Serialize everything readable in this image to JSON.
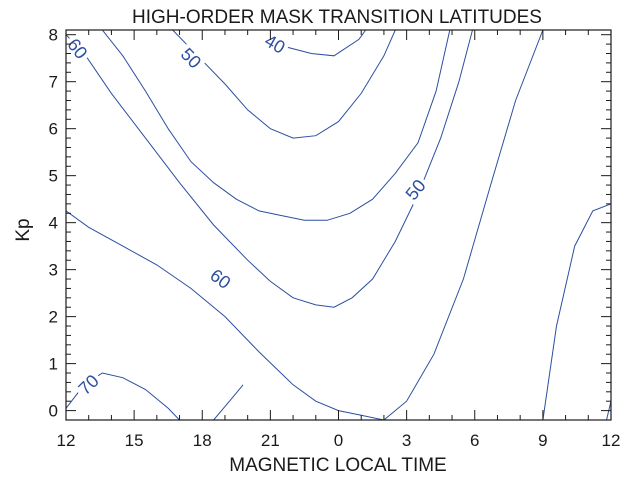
{
  "chart_data": {
    "type": "contour",
    "title": "HIGH-ORDER MASK TRANSITION LATITUDES",
    "xlabel": "MAGNETIC LOCAL TIME",
    "ylabel": "Kp",
    "x_ticks": [
      "12",
      "15",
      "18",
      "21",
      "0",
      "3",
      "6",
      "9",
      "12"
    ],
    "x_range_hours_from_noon": [
      0,
      24
    ],
    "y_ticks": [
      "0",
      "1",
      "2",
      "3",
      "4",
      "5",
      "6",
      "7",
      "8"
    ],
    "ylim": [
      -0.2,
      8.1
    ],
    "line_color": "#2c4fa0",
    "contours": [
      {
        "label": "40",
        "label_at": {
          "x": 9.2,
          "y": 7.8
        },
        "points": [
          [
            9.0,
            8.1
          ],
          [
            9.6,
            7.75
          ],
          [
            10.8,
            7.6
          ],
          [
            11.8,
            7.55
          ],
          [
            12.9,
            7.9
          ],
          [
            13.2,
            8.1
          ]
        ]
      },
      {
        "label": "50",
        "label_at": {
          "x": 5.5,
          "y": 7.5
        },
        "points": [
          [
            4.7,
            8.1
          ],
          [
            5.8,
            7.55
          ],
          [
            7.0,
            6.95
          ],
          [
            8.0,
            6.4
          ],
          [
            9.0,
            6.0
          ],
          [
            10.0,
            5.8
          ],
          [
            11.0,
            5.85
          ],
          [
            12.0,
            6.15
          ],
          [
            13.0,
            6.75
          ],
          [
            14.0,
            7.55
          ],
          [
            14.5,
            8.1
          ]
        ]
      },
      {
        "label": "50",
        "label_at": {
          "x": 15.4,
          "y": 4.7
        },
        "points": [
          [
            1.6,
            8.1
          ],
          [
            2.5,
            7.55
          ],
          [
            3.5,
            6.8
          ],
          [
            4.5,
            6.0
          ],
          [
            5.5,
            5.3
          ],
          [
            6.5,
            4.85
          ],
          [
            7.5,
            4.5
          ],
          [
            8.5,
            4.25
          ],
          [
            9.5,
            4.15
          ],
          [
            10.5,
            4.05
          ],
          [
            11.5,
            4.05
          ],
          [
            12.5,
            4.2
          ],
          [
            13.5,
            4.5
          ],
          [
            14.5,
            5.05
          ],
          [
            15.5,
            5.7
          ],
          [
            16.3,
            6.8
          ],
          [
            16.9,
            8.1
          ]
        ]
      },
      {
        "label": "60",
        "label_at": {
          "x": 0.5,
          "y": 7.7
        },
        "points": [
          [
            0.0,
            8.0
          ],
          [
            0.8,
            7.6
          ],
          [
            2.0,
            6.75
          ],
          [
            3.5,
            5.8
          ],
          [
            5.0,
            4.85
          ],
          [
            6.5,
            3.95
          ],
          [
            8.0,
            3.2
          ],
          [
            9.0,
            2.75
          ],
          [
            10.0,
            2.4
          ],
          [
            11.0,
            2.25
          ],
          [
            11.8,
            2.2
          ],
          [
            12.6,
            2.4
          ],
          [
            13.5,
            2.8
          ],
          [
            14.5,
            3.6
          ],
          [
            15.5,
            4.6
          ],
          [
            16.5,
            5.8
          ],
          [
            17.3,
            7.0
          ],
          [
            17.9,
            8.1
          ]
        ]
      },
      {
        "label": "60",
        "label_at": {
          "x": 6.8,
          "y": 2.8
        },
        "points": [
          [
            0.0,
            4.25
          ],
          [
            1.0,
            3.9
          ],
          [
            2.5,
            3.5
          ],
          [
            4.0,
            3.1
          ],
          [
            5.5,
            2.6
          ],
          [
            7.0,
            2.0
          ],
          [
            8.5,
            1.25
          ],
          [
            10.0,
            0.55
          ],
          [
            11.0,
            0.2
          ],
          [
            12.0,
            0.0
          ],
          [
            13.0,
            -0.1
          ],
          [
            14.0,
            -0.2
          ],
          [
            15.0,
            0.2
          ],
          [
            16.2,
            1.2
          ],
          [
            17.5,
            2.8
          ],
          [
            18.7,
            4.8
          ],
          [
            19.8,
            6.6
          ],
          [
            21.0,
            8.1
          ]
        ]
      },
      {
        "label": "70",
        "label_at": {
          "x": 1.0,
          "y": 0.55
        },
        "points": [
          [
            0.0,
            0.05
          ],
          [
            0.8,
            0.55
          ],
          [
            1.6,
            0.8
          ],
          [
            2.5,
            0.7
          ],
          [
            3.5,
            0.45
          ],
          [
            4.5,
            0.05
          ],
          [
            5.0,
            -0.2
          ]
        ]
      },
      {
        "label": "",
        "label_at": null,
        "points": [
          [
            6.5,
            -0.2
          ],
          [
            7.2,
            0.2
          ],
          [
            7.8,
            0.55
          ]
        ]
      },
      {
        "label": "",
        "label_at": null,
        "points": [
          [
            21.0,
            -0.2
          ],
          [
            21.6,
            1.8
          ],
          [
            22.4,
            3.5
          ],
          [
            23.2,
            4.25
          ],
          [
            24.0,
            4.4
          ]
        ]
      },
      {
        "label": "",
        "label_at": null,
        "points": [
          [
            23.8,
            -0.2
          ],
          [
            24.0,
            0.2
          ]
        ]
      }
    ]
  }
}
